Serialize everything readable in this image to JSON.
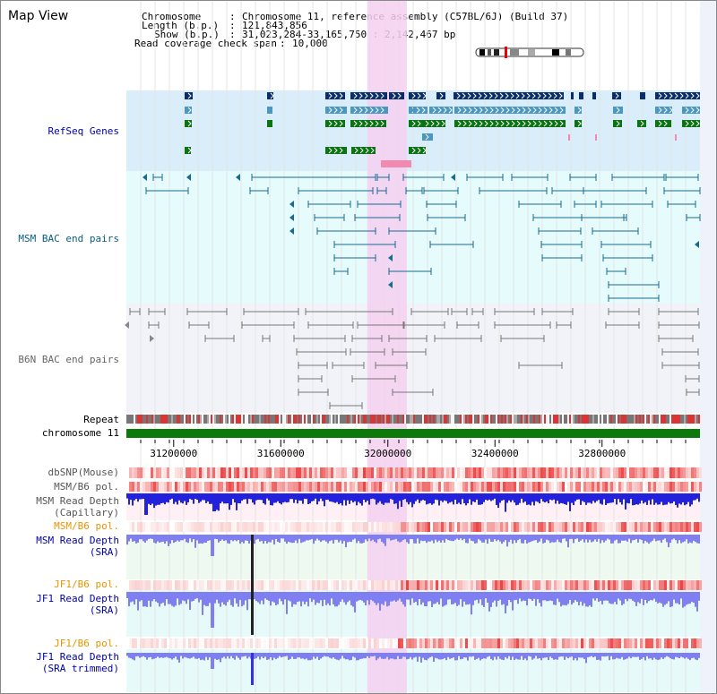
{
  "page": {
    "title": "Map View"
  },
  "header": {
    "chromosome_key": "Chromosome",
    "chromosome_value": "Chromosome 11, reference assembly (C57BL/6J) (Build 37)",
    "length_key": "Length (b.p.)",
    "length_value": "121,843,856",
    "show_key": "Show (b.p.)",
    "show_value": "31,023,284-33,165,750 : 2,142,467 bp",
    "coverage_key": "Read coverage check span",
    "coverage_value": "10,000"
  },
  "tracks": {
    "refseq": {
      "label": "RefSeq Genes",
      "color": "#0000aa"
    },
    "msm_bac": {
      "label": "MSM BAC end pairs",
      "color": "#0b5d7f"
    },
    "b6n_bac": {
      "label": "B6N BAC end pairs",
      "color": "#666666"
    },
    "repeat": {
      "label": "Repeat",
      "color": "#000000"
    },
    "chromosome": {
      "label": "chromosome 11",
      "color": "#000000"
    },
    "dbsnp": {
      "label": "dbSNP(Mouse)",
      "color": "#555555"
    },
    "msm_b6_pol_1": {
      "label": "MSM/B6 pol.",
      "color": "#555555"
    },
    "msm_depth_cap": {
      "label_line1": "MSM Read Depth",
      "label_line2": "(Capillary)",
      "color": "#555555"
    },
    "msm_b6_pol_2": {
      "label": "MSM/B6 pol.",
      "color": "#e69500"
    },
    "msm_depth_sra": {
      "label_line1": "MSM Read Depth",
      "label_line2": "(SRA)",
      "color": "#0000aa"
    },
    "jf1_b6_pol_1": {
      "label": "JF1/B6 pol.",
      "color": "#e69500"
    },
    "jf1_depth_sra": {
      "label_line1": "JF1 Read Depth",
      "label_line2": "(SRA)",
      "color": "#0000aa"
    },
    "jf1_b6_pol_2": {
      "label": "JF1/B6 pol.",
      "color": "#e69500"
    },
    "jf1_depth_trim": {
      "label_line1": "JF1 Read Depth",
      "label_line2": "(SRA trimmed)",
      "color": "#0000aa"
    }
  },
  "axis": {
    "ticks": [
      "31200000",
      "31600000",
      "32000000",
      "32400000",
      "32800000"
    ],
    "tick_values": [
      31200000,
      31600000,
      32000000,
      32400000,
      32800000
    ],
    "range_start": 31023284,
    "range_end": 33165750
  },
  "highlight": {
    "start": 31923000,
    "end": 32071000,
    "color": "#f5d0f0"
  },
  "colors": {
    "refseq_bg": "#d9eefa",
    "msm_bac_bg": "#e6fbfb",
    "b6n_bac_bg": "#f2f3f8",
    "dark_gene": "#0a2e6b",
    "mid_gene": "#4a97c0",
    "green_gene": "#0a7312",
    "chromosome_bar": "#0b7a0b",
    "depth_cap": "#2222dd",
    "depth_sra": "#7f7ff2",
    "snp_red": "#ee4444",
    "pol_red": "#f06060"
  }
}
